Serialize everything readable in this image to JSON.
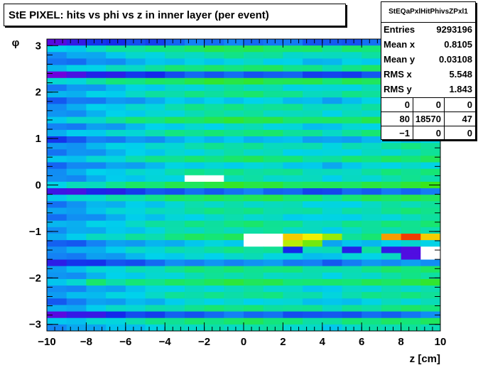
{
  "chart_data": {
    "type": "heatmap",
    "title": "StE PIXEL: hits vs phi vs z in inner layer (per event)",
    "xlabel": "z [cm]",
    "ylabel": "φ",
    "xlim": [
      -10,
      10
    ],
    "ylim": [
      -3.1416,
      3.1416
    ],
    "x_ticks": [
      "−10",
      "−8",
      "−6",
      "−4",
      "−2",
      "0",
      "2",
      "4",
      "6",
      "8",
      "10"
    ],
    "y_ticks": [
      "−3",
      "−2",
      "−1",
      "0",
      "1",
      "2",
      "3"
    ],
    "x_tick_values": [
      -10,
      -8,
      -6,
      -4,
      -2,
      0,
      2,
      4,
      6,
      8,
      10
    ],
    "y_tick_values": [
      -3,
      -2,
      -1,
      0,
      1,
      2,
      3
    ],
    "nbins_x": 20,
    "row_levels": [
      0.22,
      0.58,
      0.48,
      0.4,
      0.55,
      0.18,
      0.62,
      0.45,
      0.52,
      0.38,
      0.5,
      0.47,
      0.6,
      0.42,
      0.53,
      0.35,
      0.48,
      0.44,
      0.55,
      0.4,
      0.5,
      0.46,
      0.62,
      0.2,
      0.58,
      0.45,
      0.5,
      0.43,
      0.52,
      0.47,
      0.56,
      0.38,
      0.49,
      0.42,
      0.26,
      0.53,
      0.47,
      0.59,
      0.44,
      0.5,
      0.41,
      0.52,
      0.2,
      0.55,
      0.46
    ],
    "col_offsets": [
      -0.15,
      -0.12,
      -0.08,
      -0.05,
      -0.02,
      0.0,
      0.03,
      0.05,
      0.06,
      0.07,
      0.07,
      0.06,
      0.04,
      0.02,
      0.0,
      0.03,
      0.05,
      0.07,
      0.08,
      0.09
    ],
    "hot_spots": [
      {
        "ix": 7,
        "iy": 21,
        "level": 1.4
      },
      {
        "ix": 8,
        "iy": 21,
        "level": 1.4
      },
      {
        "ix": 10,
        "iy": 30,
        "level": 1.2
      },
      {
        "ix": 10,
        "iy": 31,
        "level": 1.2
      },
      {
        "ix": 11,
        "iy": 30,
        "level": 1.2
      },
      {
        "ix": 11,
        "iy": 31,
        "level": 1.2
      },
      {
        "ix": 12,
        "iy": 30,
        "level": 0.88
      },
      {
        "ix": 12,
        "iy": 31,
        "level": 0.82
      },
      {
        "ix": 13,
        "iy": 30,
        "level": 0.85
      },
      {
        "ix": 13,
        "iy": 31,
        "level": 0.78
      },
      {
        "ix": 14,
        "iy": 30,
        "level": 0.8
      },
      {
        "ix": 17,
        "iy": 30,
        "level": 0.92
      },
      {
        "ix": 18,
        "iy": 30,
        "level": 1.0
      },
      {
        "ix": 19,
        "iy": 30,
        "level": 0.88
      },
      {
        "ix": 18,
        "iy": 32,
        "level": 0.05
      },
      {
        "ix": 18,
        "iy": 33,
        "level": 0.05
      },
      {
        "ix": 19,
        "iy": 32,
        "level": 1.2
      },
      {
        "ix": 19,
        "iy": 33,
        "level": 1.2
      },
      {
        "ix": 17,
        "iy": 32,
        "level": 0.1
      },
      {
        "ix": 15,
        "iy": 32,
        "level": 0.12
      },
      {
        "ix": 12,
        "iy": 32,
        "level": 0.15
      },
      {
        "ix": 2,
        "iy": 37,
        "level": 0.62
      }
    ],
    "stats": {
      "name": "StEQaPxlHitPhivsZPxl1",
      "rows": [
        {
          "key": "Entries",
          "value": "9293196"
        },
        {
          "key": "Mean x",
          "value": "0.8105"
        },
        {
          "key": "Mean y",
          "value": "0.03108"
        },
        {
          "key": "RMS x",
          "value": "5.548"
        },
        {
          "key": "RMS y",
          "value": "1.843"
        }
      ],
      "grid": [
        [
          "0",
          "0",
          "0"
        ],
        [
          "80",
          "18570",
          "47"
        ],
        [
          "−1",
          "0",
          "0"
        ]
      ]
    }
  }
}
